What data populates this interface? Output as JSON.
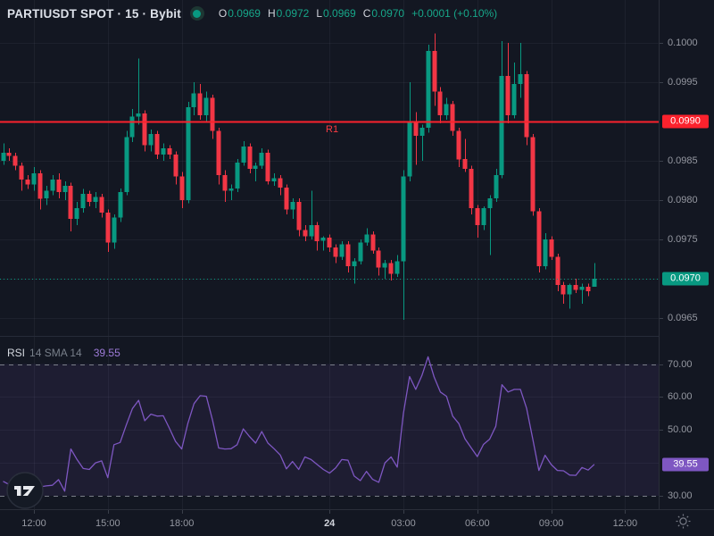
{
  "header": {
    "symbol_title": "PARTIUSDT SPOT · 15 · Bybit",
    "status_color": "#089981",
    "ohlc": {
      "open_label": "O",
      "open": "0.0969",
      "high_label": "H",
      "high": "0.0972",
      "low_label": "L",
      "low": "0.0969",
      "close_label": "C",
      "close": "0.0970",
      "change": "+0.0001 (+0.10%)"
    }
  },
  "indicator": {
    "name": "RSI",
    "params": "14 SMA 14",
    "value": "39.55"
  },
  "price_axis": {
    "ticks": [
      {
        "label": "0.1000",
        "price": 0.1
      },
      {
        "label": "0.0995",
        "price": 0.0995
      },
      {
        "label": "0.0990",
        "price": 0.099,
        "hidden_by_badge": true
      },
      {
        "label": "0.0985",
        "price": 0.0985
      },
      {
        "label": "0.0980",
        "price": 0.098
      },
      {
        "label": "0.0975",
        "price": 0.0975
      },
      {
        "label": "0.0970",
        "price": 0.097,
        "hidden_by_badge": true
      },
      {
        "label": "0.0965",
        "price": 0.0965
      }
    ]
  },
  "rsi_axis": {
    "ticks": [
      {
        "label": "70.00",
        "value": 70
      },
      {
        "label": "60.00",
        "value": 60
      },
      {
        "label": "50.00",
        "value": 50
      },
      {
        "label": "30.00",
        "value": 30
      }
    ]
  },
  "time_axis": {
    "labels": [
      {
        "text": "12:00",
        "i": 5
      },
      {
        "text": "15:00",
        "i": 17
      },
      {
        "text": "18:00",
        "i": 29
      },
      {
        "text": "24",
        "i": 53,
        "major": true
      },
      {
        "text": "03:00",
        "i": 65
      },
      {
        "text": "06:00",
        "i": 77
      },
      {
        "text": "09:00",
        "i": 89
      },
      {
        "text": "12:00",
        "i": 101
      }
    ]
  },
  "colors": {
    "background": "#131722",
    "grid": "rgba(147,158,181,0.08)",
    "axis_text": "#9598a1",
    "axis_text_bright": "#d1d4dc",
    "up": "#089981",
    "down": "#f23645",
    "r1_line": "#fb222d",
    "last_price": "#089981",
    "rsi_line": "#7e57c2",
    "rsi_badge": "#7e57c2",
    "band_line": "#8a8e98",
    "band_fill": "rgba(126,87,194,0.10)",
    "border": "#2a2e39",
    "separator": "#262b38"
  },
  "chart_data": [
    {
      "type": "candlestick",
      "title": "PARTIUSDT SPOT · 15 · Bybit",
      "symbol": "PARTIUSDT",
      "market": "SPOT",
      "interval": "15",
      "exchange": "Bybit",
      "start_time": "10:45",
      "step_minutes": 15,
      "price_range_visible": [
        0.0963,
        0.1002
      ],
      "levels": [
        {
          "name": "R1",
          "price": 0.099,
          "price_label": "0.0990",
          "style": "solid"
        },
        {
          "name": "last",
          "price": 0.097,
          "price_label": "0.0970",
          "style": "dotted"
        }
      ],
      "candles": [
        [
          0.0985,
          0.09872,
          0.09845,
          0.0986
        ],
        [
          0.0986,
          0.09866,
          0.0985,
          0.09856
        ],
        [
          0.09856,
          0.0986,
          0.09838,
          0.09844
        ],
        [
          0.09844,
          0.09848,
          0.09812,
          0.09826
        ],
        [
          0.09826,
          0.09832,
          0.09814,
          0.0982
        ],
        [
          0.0982,
          0.09842,
          0.09812,
          0.09834
        ],
        [
          0.09834,
          0.09838,
          0.09788,
          0.09802
        ],
        [
          0.09802,
          0.09818,
          0.09794,
          0.09812
        ],
        [
          0.09812,
          0.09832,
          0.09806,
          0.09826
        ],
        [
          0.09826,
          0.09834,
          0.09802,
          0.0981
        ],
        [
          0.0981,
          0.09824,
          0.098,
          0.09818
        ],
        [
          0.09818,
          0.09822,
          0.0976,
          0.09776
        ],
        [
          0.09776,
          0.09798,
          0.09768,
          0.0979
        ],
        [
          0.0979,
          0.09814,
          0.09784,
          0.09808
        ],
        [
          0.09808,
          0.09812,
          0.09792,
          0.09798
        ],
        [
          0.09798,
          0.0981,
          0.0979,
          0.09804
        ],
        [
          0.09804,
          0.09808,
          0.09778,
          0.09784
        ],
        [
          0.09784,
          0.09788,
          0.09734,
          0.09746
        ],
        [
          0.09746,
          0.09782,
          0.09738,
          0.09778
        ],
        [
          0.09778,
          0.09815,
          0.09772,
          0.0981
        ],
        [
          0.0981,
          0.09888,
          0.09806,
          0.0988
        ],
        [
          0.0988,
          0.09916,
          0.09874,
          0.09906
        ],
        [
          0.09906,
          0.0998,
          0.09896,
          0.0991
        ],
        [
          0.0991,
          0.09914,
          0.09862,
          0.0987
        ],
        [
          0.0987,
          0.0989,
          0.09862,
          0.09884
        ],
        [
          0.09884,
          0.09888,
          0.09852,
          0.09858
        ],
        [
          0.09858,
          0.09872,
          0.0985,
          0.09866
        ],
        [
          0.09866,
          0.0987,
          0.09852,
          0.09858
        ],
        [
          0.09858,
          0.09862,
          0.0982,
          0.0983
        ],
        [
          0.0983,
          0.09836,
          0.0979,
          0.098
        ],
        [
          0.098,
          0.09925,
          0.09796,
          0.09918
        ],
        [
          0.09918,
          0.0995,
          0.09908,
          0.09936
        ],
        [
          0.09936,
          0.09948,
          0.09902,
          0.09908
        ],
        [
          0.09908,
          0.09938,
          0.099,
          0.0993
        ],
        [
          0.0993,
          0.09934,
          0.09878,
          0.09888
        ],
        [
          0.09888,
          0.09892,
          0.0982,
          0.09832
        ],
        [
          0.09832,
          0.09838,
          0.09798,
          0.09812
        ],
        [
          0.09812,
          0.0982,
          0.098,
          0.09815
        ],
        [
          0.09815,
          0.09852,
          0.0981,
          0.09848
        ],
        [
          0.09848,
          0.09875,
          0.09844,
          0.09868
        ],
        [
          0.09868,
          0.09872,
          0.09834,
          0.0984
        ],
        [
          0.0984,
          0.09848,
          0.09824,
          0.09844
        ],
        [
          0.09844,
          0.09866,
          0.0984,
          0.0986
        ],
        [
          0.0986,
          0.09864,
          0.0982,
          0.09824
        ],
        [
          0.09824,
          0.09834,
          0.09818,
          0.09828
        ],
        [
          0.09828,
          0.09832,
          0.09806,
          0.09816
        ],
        [
          0.09816,
          0.0982,
          0.09782,
          0.09788
        ],
        [
          0.09788,
          0.09802,
          0.09776,
          0.09798
        ],
        [
          0.09798,
          0.09802,
          0.09754,
          0.09762
        ],
        [
          0.09762,
          0.09768,
          0.09748,
          0.09754
        ],
        [
          0.09754,
          0.09812,
          0.0975,
          0.09768
        ],
        [
          0.09768,
          0.09772,
          0.09736,
          0.09748
        ],
        [
          0.09748,
          0.09754,
          0.09736,
          0.09752
        ],
        [
          0.09752,
          0.09756,
          0.09734,
          0.0974
        ],
        [
          0.0974,
          0.09744,
          0.0972,
          0.09728
        ],
        [
          0.09728,
          0.09748,
          0.09724,
          0.09744
        ],
        [
          0.09744,
          0.09748,
          0.09708,
          0.09716
        ],
        [
          0.09716,
          0.09726,
          0.09694,
          0.09722
        ],
        [
          0.09722,
          0.0975,
          0.09718,
          0.09746
        ],
        [
          0.09746,
          0.09764,
          0.09742,
          0.09756
        ],
        [
          0.09756,
          0.0976,
          0.09732,
          0.09736
        ],
        [
          0.09736,
          0.0974,
          0.09704,
          0.09714
        ],
        [
          0.09714,
          0.09724,
          0.097,
          0.0972
        ],
        [
          0.0972,
          0.09724,
          0.09698,
          0.09706
        ],
        [
          0.09706,
          0.0973,
          0.09702,
          0.09722
        ],
        [
          0.09722,
          0.09838,
          0.09648,
          0.0983
        ],
        [
          0.0983,
          0.0995,
          0.09824,
          0.099
        ],
        [
          0.099,
          0.09912,
          0.09845,
          0.09882
        ],
        [
          0.09882,
          0.09896,
          0.0985,
          0.09892
        ],
        [
          0.09892,
          0.09998,
          0.09886,
          0.0999
        ],
        [
          0.0999,
          0.10012,
          0.0992,
          0.09938
        ],
        [
          0.09938,
          0.09944,
          0.09898,
          0.09908
        ],
        [
          0.09908,
          0.0993,
          0.09902,
          0.09922
        ],
        [
          0.09922,
          0.09926,
          0.09882,
          0.09888
        ],
        [
          0.09888,
          0.09892,
          0.09842,
          0.09852
        ],
        [
          0.09852,
          0.09878,
          0.09836,
          0.0984
        ],
        [
          0.0984,
          0.09844,
          0.09782,
          0.0979
        ],
        [
          0.0979,
          0.09794,
          0.09752,
          0.09768
        ],
        [
          0.09768,
          0.09792,
          0.09762,
          0.0979
        ],
        [
          0.0979,
          0.09806,
          0.0973,
          0.09802
        ],
        [
          0.09802,
          0.0984,
          0.09798,
          0.09832
        ],
        [
          0.09832,
          0.10002,
          0.09828,
          0.09958
        ],
        [
          0.09958,
          0.1,
          0.09898,
          0.09908
        ],
        [
          0.09908,
          0.09975,
          0.09904,
          0.09948
        ],
        [
          0.09948,
          0.1,
          0.0993,
          0.0996
        ],
        [
          0.0996,
          0.09964,
          0.0987,
          0.0988
        ],
        [
          0.0988,
          0.09884,
          0.0978,
          0.09786
        ],
        [
          0.09786,
          0.0979,
          0.09708,
          0.09716
        ],
        [
          0.09716,
          0.09758,
          0.09712,
          0.0975
        ],
        [
          0.0975,
          0.09754,
          0.09724,
          0.09728
        ],
        [
          0.09728,
          0.09732,
          0.09684,
          0.09692
        ],
        [
          0.09692,
          0.09696,
          0.09668,
          0.0968
        ],
        [
          0.0968,
          0.09694,
          0.09662,
          0.09692
        ],
        [
          0.09692,
          0.097,
          0.09682,
          0.09686
        ],
        [
          0.09686,
          0.09694,
          0.09668,
          0.0969
        ],
        [
          0.0969,
          0.09694,
          0.09678,
          0.09684
        ],
        [
          0.0969,
          0.0972,
          0.0969,
          0.097
        ]
      ]
    },
    {
      "type": "line",
      "name": "RSI",
      "length": 14,
      "sma_length": 14,
      "last_value": 39.55,
      "last_label": "39.55",
      "upper_band": 70,
      "lower_band": 30,
      "gridlines": [
        60,
        50,
        40
      ],
      "y_range": [
        28,
        73
      ],
      "values": [
        34.4,
        33.4,
        33.0,
        32.8,
        33.0,
        32.8,
        32.7,
        33.0,
        33.2,
        34.9,
        31.4,
        44.2,
        41.0,
        38.3,
        38.0,
        40.0,
        40.6,
        35.5,
        45.5,
        46.2,
        51.5,
        56.5,
        59.0,
        52.8,
        54.8,
        54.2,
        54.3,
        50.5,
        46.5,
        44.2,
        52.0,
        58.0,
        60.4,
        60.2,
        53.0,
        44.5,
        44.2,
        44.3,
        45.5,
        50.3,
        48.0,
        46.0,
        49.5,
        46.0,
        44.3,
        42.4,
        38.2,
        40.4,
        38.0,
        41.8,
        41.0,
        39.5,
        38.0,
        36.9,
        38.5,
        41.0,
        40.8,
        36.0,
        34.6,
        37.4,
        35.0,
        34.1,
        40.0,
        41.8,
        38.7,
        55.0,
        66.2,
        62.3,
        66.5,
        72.2,
        66.0,
        61.5,
        60.2,
        54.2,
        51.9,
        47.3,
        44.6,
        41.9,
        45.6,
        47.2,
        51.1,
        63.7,
        61.5,
        62.3,
        62.3,
        56.6,
        47.3,
        37.7,
        42.3,
        39.5,
        37.7,
        37.6,
        36.3,
        36.2,
        38.6,
        37.8,
        39.55
      ]
    }
  ]
}
